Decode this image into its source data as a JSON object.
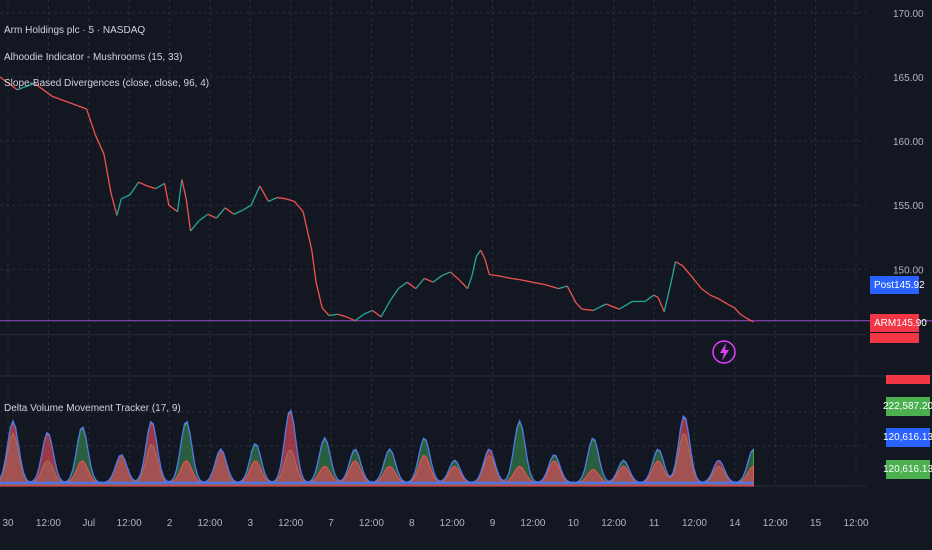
{
  "legend": {
    "symbol": "Arm Holdings plc · 5 · NASDAQ",
    "indicator1": "Alhoodie Indicator - Mushrooms (15, 33)",
    "indicator2": "Slope-Based Divergences (close, close, 96, 4)",
    "indicator3": "Delta Volume Movement Tracker (17, 9)"
  },
  "price_tags": {
    "post_label": "Post",
    "post_value": "145.92",
    "arm_label": "ARM",
    "arm_value": "145.90",
    "colors": {
      "post": "#2962ff",
      "arm": "#f23645"
    }
  },
  "volume_tags": {
    "v1": "222,587.20",
    "v2": "120,616.13",
    "v3": "120,616.13",
    "colors": {
      "v1": "#4caf50",
      "v2": "#2962ff",
      "v3": "#4caf50",
      "top": "#f23645"
    }
  },
  "lightning_icon": "lightning-icon",
  "chart_data": [
    {
      "type": "line",
      "name": "price",
      "ylim": [
        142,
        171
      ],
      "yticks": [
        170.0,
        165.0,
        160.0,
        155.0,
        150.0
      ],
      "x_ticks": [
        "30",
        "12:00",
        "Jul",
        "12:00",
        "2",
        "12:00",
        "3",
        "12:00",
        "7",
        "12:00",
        "8",
        "12:00",
        "9",
        "12:00",
        "10",
        "12:00",
        "11",
        "12:00",
        "14",
        "12:00",
        "15",
        "12:00"
      ],
      "x_range": [
        0,
        1000
      ],
      "points": [
        [
          0,
          165.0
        ],
        [
          20,
          164.0
        ],
        [
          40,
          164.5
        ],
        [
          60,
          163.5
        ],
        [
          80,
          163.0
        ],
        [
          100,
          162.5
        ],
        [
          110,
          160.5
        ],
        [
          120,
          159.0
        ],
        [
          128,
          156.0
        ],
        [
          135,
          154.2
        ],
        [
          140,
          155.5
        ],
        [
          150,
          155.8
        ],
        [
          160,
          156.8
        ],
        [
          170,
          156.5
        ],
        [
          180,
          156.3
        ],
        [
          190,
          156.7
        ],
        [
          195,
          155.0
        ],
        [
          205,
          154.5
        ],
        [
          210,
          157.0
        ],
        [
          215,
          155.5
        ],
        [
          220,
          153.0
        ],
        [
          230,
          153.8
        ],
        [
          240,
          154.3
        ],
        [
          250,
          154.0
        ],
        [
          260,
          154.8
        ],
        [
          270,
          154.3
        ],
        [
          280,
          154.6
        ],
        [
          290,
          155.0
        ],
        [
          300,
          156.5
        ],
        [
          310,
          155.3
        ],
        [
          320,
          155.6
        ],
        [
          330,
          155.5
        ],
        [
          340,
          155.3
        ],
        [
          350,
          154.5
        ],
        [
          355,
          153.0
        ],
        [
          360,
          151.5
        ],
        [
          365,
          149.0
        ],
        [
          372,
          147.0
        ],
        [
          380,
          146.4
        ],
        [
          390,
          146.5
        ],
        [
          400,
          146.3
        ],
        [
          410,
          146.0
        ],
        [
          420,
          146.5
        ],
        [
          430,
          146.8
        ],
        [
          440,
          146.3
        ],
        [
          450,
          147.5
        ],
        [
          460,
          148.5
        ],
        [
          470,
          149.0
        ],
        [
          480,
          148.5
        ],
        [
          490,
          149.3
        ],
        [
          500,
          149.0
        ],
        [
          510,
          149.5
        ],
        [
          520,
          149.8
        ],
        [
          530,
          149.2
        ],
        [
          540,
          148.5
        ],
        [
          545,
          149.5
        ],
        [
          550,
          151.0
        ],
        [
          555,
          151.5
        ],
        [
          560,
          150.8
        ],
        [
          565,
          149.6
        ],
        [
          575,
          149.5
        ],
        [
          590,
          149.3
        ],
        [
          600,
          149.2
        ],
        [
          615,
          149.0
        ],
        [
          630,
          148.8
        ],
        [
          645,
          148.5
        ],
        [
          655,
          148.7
        ],
        [
          665,
          147.4
        ],
        [
          672,
          146.9
        ],
        [
          685,
          146.8
        ],
        [
          700,
          147.3
        ],
        [
          715,
          146.9
        ],
        [
          730,
          147.5
        ],
        [
          745,
          147.5
        ],
        [
          755,
          148.0
        ],
        [
          760,
          147.8
        ],
        [
          767,
          146.7
        ],
        [
          775,
          149.0
        ],
        [
          780,
          150.6
        ],
        [
          788,
          150.3
        ],
        [
          798,
          149.5
        ],
        [
          810,
          148.5
        ],
        [
          820,
          148.0
        ],
        [
          830,
          147.7
        ],
        [
          840,
          147.3
        ],
        [
          848,
          147.0
        ],
        [
          855,
          146.5
        ],
        [
          862,
          146.2
        ],
        [
          870,
          145.9
        ]
      ],
      "horizontal_line": 146.0
    },
    {
      "type": "area",
      "name": "delta_volume",
      "ylim": [
        0,
        1
      ],
      "peaks_x": [
        15,
        55,
        95,
        140,
        175,
        215,
        255,
        295,
        335,
        375,
        410,
        450,
        490,
        525,
        565,
        600,
        640,
        685,
        720,
        760,
        790,
        830,
        870
      ],
      "peaks_red": [
        0.55,
        0.45,
        0.2,
        0.25,
        0.55,
        0.2,
        0.3,
        0.2,
        0.65,
        0.15,
        0.2,
        0.15,
        0.25,
        0.15,
        0.3,
        0.15,
        0.2,
        0.12,
        0.15,
        0.2,
        0.6,
        0.2,
        0.15
      ],
      "peaks_green": [
        0.45,
        0.2,
        0.5,
        0.25,
        0.35,
        0.55,
        0.3,
        0.35,
        0.3,
        0.4,
        0.3,
        0.3,
        0.4,
        0.2,
        0.25,
        0.55,
        0.25,
        0.4,
        0.2,
        0.3,
        0.45,
        0.15,
        0.3
      ],
      "colors": {
        "red": "#e34c5b",
        "green": "#3d9a55",
        "blue": "#4c78e6"
      }
    }
  ]
}
